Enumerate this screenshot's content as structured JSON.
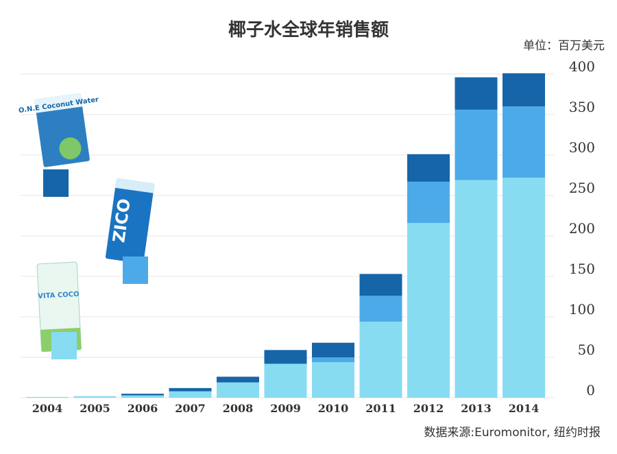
{
  "chart_data": {
    "type": "bar",
    "stacked": true,
    "title": "椰子水全球年销售额",
    "unit_label": "单位：百万美元",
    "source": "数据来源:Euromonitor, 纽约时报",
    "categories": [
      "2004",
      "2005",
      "2006",
      "2007",
      "2008",
      "2009",
      "2010",
      "2011",
      "2012",
      "2013",
      "2014"
    ],
    "series": [
      {
        "values": [
          1,
          2,
          3,
          8,
          19,
          42,
          44,
          94,
          216,
          269,
          272
        ],
        "color": "#87dcf2"
      },
      {
        "values": [
          0,
          0,
          0,
          0,
          0,
          0,
          6,
          32,
          51,
          87,
          88
        ],
        "color": "#4daae8"
      },
      {
        "values": [
          0,
          0,
          2,
          4,
          7,
          17,
          18,
          27,
          34,
          40,
          41
        ],
        "color": "#1565a8"
      }
    ],
    "y_ticks": [
      "0",
      "50",
      "100",
      "150",
      "200",
      "250",
      "300",
      "350",
      "400"
    ],
    "ylim": [
      0,
      400
    ],
    "grid": true,
    "y_axis_position": "right",
    "legend": {
      "placement": "left",
      "items": [
        {
          "brand": "O.N.E",
          "package_text": "O.N.E Coconut Water",
          "color": "#1565a8"
        },
        {
          "brand": "ZICO",
          "package_text": "ZICO",
          "color": "#4daae8"
        },
        {
          "brand": "VITA COCO",
          "package_text": "VITA COCO",
          "color": "#87dcf2"
        }
      ]
    }
  }
}
